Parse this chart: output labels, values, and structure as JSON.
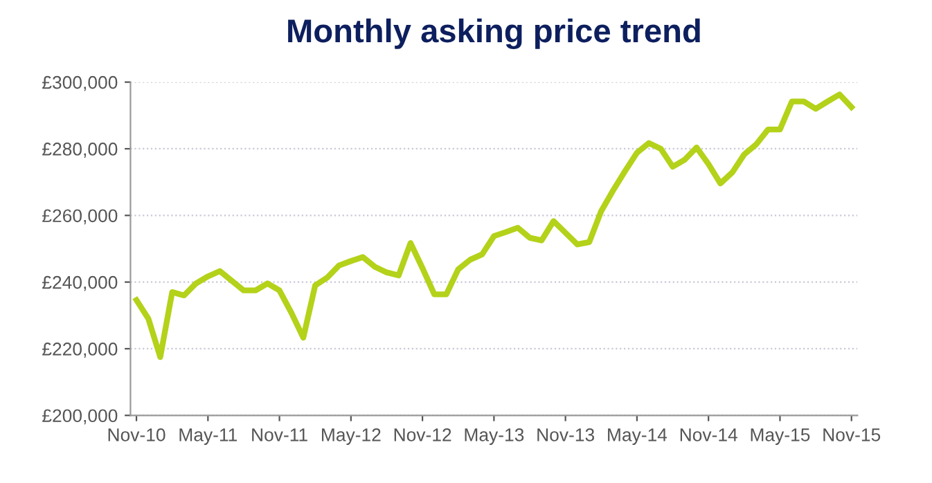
{
  "chart_data": {
    "type": "line",
    "title": "Monthly asking price trend",
    "categories": [
      "Nov-10",
      null,
      null,
      null,
      null,
      null,
      "May-11",
      null,
      null,
      null,
      null,
      null,
      "Nov-11",
      null,
      null,
      null,
      null,
      null,
      "May-12",
      null,
      null,
      null,
      null,
      null,
      "Nov-12",
      null,
      null,
      null,
      null,
      null,
      "May-13",
      null,
      null,
      null,
      null,
      null,
      "Nov-13",
      null,
      null,
      null,
      null,
      null,
      "May-14",
      null,
      null,
      null,
      null,
      null,
      "Nov-14",
      null,
      null,
      null,
      null,
      null,
      "May-15",
      null,
      null,
      null,
      null,
      null,
      "Nov-15"
    ],
    "series": [
      {
        "color": "#b3d219",
        "values": [
          234600,
          229000,
          217500,
          237000,
          236000,
          239600,
          241700,
          243300,
          240400,
          237500,
          237500,
          239600,
          237500,
          230800,
          223300,
          239000,
          241300,
          245000,
          246300,
          247500,
          244600,
          242900,
          242000,
          251700,
          244200,
          236300,
          236300,
          243800,
          246700,
          248300,
          253800,
          255000,
          256300,
          253300,
          252500,
          258300,
          254800,
          251300,
          252000,
          261300,
          267500,
          273300,
          278800,
          281700,
          280000,
          274600,
          276700,
          280400,
          275400,
          269600,
          272900,
          278300,
          281300,
          285800,
          285800,
          294200,
          294200,
          292000,
          294200,
          296300,
          292500
        ]
      }
    ],
    "ylim": [
      200000,
      300000
    ],
    "yticks": [
      {
        "value": 200000,
        "label": "£200,000"
      },
      {
        "value": 220000,
        "label": "£220,000"
      },
      {
        "value": 240000,
        "label": "£240,000"
      },
      {
        "value": 260000,
        "label": "£260,000"
      },
      {
        "value": 280000,
        "label": "£280,000"
      },
      {
        "value": 300000,
        "label": "£300,000"
      }
    ],
    "grid": "y",
    "marker": "none",
    "line_style": "solid"
  }
}
